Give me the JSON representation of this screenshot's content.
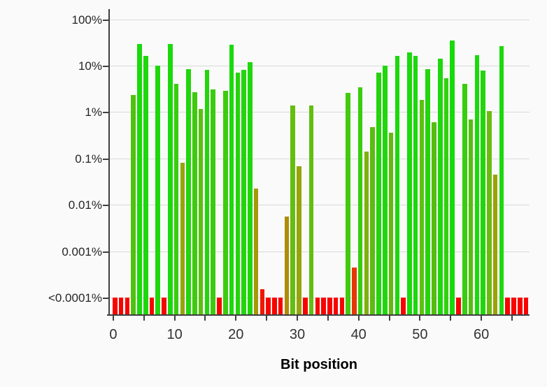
{
  "chart_data": {
    "type": "bar",
    "xlabel": "Bit position",
    "y_axis": {
      "scale": "log",
      "tick_labels": [
        "100%",
        "10%",
        "1%",
        "0.1%",
        "0.01%",
        "0.001%",
        "<0.0001%"
      ],
      "tick_values": [
        100,
        10,
        1,
        0.1,
        0.01,
        0.001,
        0.0001
      ]
    },
    "x_axis": {
      "major_tick_labels": [
        "0",
        "10",
        "20",
        "30",
        "40",
        "50",
        "60"
      ],
      "major_tick_positions": [
        0,
        10,
        20,
        30,
        40,
        50,
        60
      ],
      "minor_tick_step": 5,
      "range": [
        0,
        67
      ]
    },
    "status_colors": {
      "fail_red": "#f80400",
      "pass_green": "#1ad90c",
      "low_olive": "#9ba108"
    },
    "bars": [
      {
        "bit": 0,
        "pct": "<0.0001",
        "color": "#f80400"
      },
      {
        "bit": 1,
        "pct": "<0.0001",
        "color": "#f80400"
      },
      {
        "bit": 2,
        "pct": "<0.0001",
        "color": "#f80400"
      },
      {
        "bit": 3,
        "pct": 2.3,
        "color": "#4fc20f"
      },
      {
        "bit": 4,
        "pct": 29,
        "color": "#1ad90c"
      },
      {
        "bit": 5,
        "pct": 16,
        "color": "#1cd80c"
      },
      {
        "bit": 6,
        "pct": "<0.0001",
        "color": "#f80400"
      },
      {
        "bit": 7,
        "pct": 10,
        "color": "#1fd70c"
      },
      {
        "bit": 8,
        "pct": "<0.0001",
        "color": "#f80400"
      },
      {
        "bit": 9,
        "pct": 29,
        "color": "#1ad90c"
      },
      {
        "bit": 10,
        "pct": 4.0,
        "color": "#36ce0d"
      },
      {
        "bit": 11,
        "pct": 0.08,
        "color": "#93a609"
      },
      {
        "bit": 12,
        "pct": 8.3,
        "color": "#22d50c"
      },
      {
        "bit": 13,
        "pct": 2.7,
        "color": "#3fca0e"
      },
      {
        "bit": 14,
        "pct": 1.15,
        "color": "#58c00f"
      },
      {
        "bit": 15,
        "pct": 8.0,
        "color": "#22d50c"
      },
      {
        "bit": 16,
        "pct": 3.1,
        "color": "#3bcc0e"
      },
      {
        "bit": 17,
        "pct": "<0.0001",
        "color": "#f80400"
      },
      {
        "bit": 18,
        "pct": 2.9,
        "color": "#3dcb0e"
      },
      {
        "bit": 19,
        "pct": 28,
        "color": "#1ad90c"
      },
      {
        "bit": 20,
        "pct": 7.0,
        "color": "#25d40c"
      },
      {
        "bit": 21,
        "pct": 8.1,
        "color": "#22d50c"
      },
      {
        "bit": 22,
        "pct": 12,
        "color": "#1ed70c"
      },
      {
        "bit": 23,
        "pct": 0.022,
        "color": "#a59908"
      },
      {
        "bit": 24,
        "pct": 0.00015,
        "color": "#ef1800"
      },
      {
        "bit": 25,
        "pct": "<0.0001",
        "color": "#f80400"
      },
      {
        "bit": 26,
        "pct": "<0.0001",
        "color": "#f80400"
      },
      {
        "bit": 27,
        "pct": "<0.0001",
        "color": "#f80400"
      },
      {
        "bit": 28,
        "pct": 0.0056,
        "color": "#ae8c06"
      },
      {
        "bit": 29,
        "pct": 1.4,
        "color": "#63be10"
      },
      {
        "bit": 30,
        "pct": 0.068,
        "color": "#96a309"
      },
      {
        "bit": 31,
        "pct": "<0.0001",
        "color": "#f80400"
      },
      {
        "bit": 32,
        "pct": 1.4,
        "color": "#60bf10"
      },
      {
        "bit": 33,
        "pct": "<0.0001",
        "color": "#f80400"
      },
      {
        "bit": 34,
        "pct": "<0.0001",
        "color": "#f80400"
      },
      {
        "bit": 35,
        "pct": "<0.0001",
        "color": "#f80400"
      },
      {
        "bit": 36,
        "pct": "<0.0001",
        "color": "#f80400"
      },
      {
        "bit": 37,
        "pct": "<0.0001",
        "color": "#f80400"
      },
      {
        "bit": 38,
        "pct": 2.6,
        "color": "#41ca0e"
      },
      {
        "bit": 39,
        "pct": 0.00045,
        "color": "#e73800"
      },
      {
        "bit": 40,
        "pct": 3.4,
        "color": "#38cd0d"
      },
      {
        "bit": 41,
        "pct": 0.14,
        "color": "#7fb00b"
      },
      {
        "bit": 42,
        "pct": 0.47,
        "color": "#5abd0f"
      },
      {
        "bit": 43,
        "pct": 7.0,
        "color": "#25d40c"
      },
      {
        "bit": 44,
        "pct": 10,
        "color": "#1fd70c"
      },
      {
        "bit": 45,
        "pct": 0.36,
        "color": "#63b90f"
      },
      {
        "bit": 46,
        "pct": 16,
        "color": "#1cd80c"
      },
      {
        "bit": 47,
        "pct": "<0.0001",
        "color": "#f80400"
      },
      {
        "bit": 48,
        "pct": 19,
        "color": "#1bd90c"
      },
      {
        "bit": 49,
        "pct": 16,
        "color": "#1cd80c"
      },
      {
        "bit": 50,
        "pct": 1.8,
        "color": "#5cc110"
      },
      {
        "bit": 51,
        "pct": 8.4,
        "color": "#22d50c"
      },
      {
        "bit": 52,
        "pct": 0.6,
        "color": "#55bd0e"
      },
      {
        "bit": 53,
        "pct": 14,
        "color": "#1dd80c"
      },
      {
        "bit": 54,
        "pct": 5.3,
        "color": "#30d10d"
      },
      {
        "bit": 55,
        "pct": 35,
        "color": "#17da0b"
      },
      {
        "bit": 56,
        "pct": "<0.0001",
        "color": "#f80400"
      },
      {
        "bit": 57,
        "pct": 4.0,
        "color": "#36ce0d"
      },
      {
        "bit": 58,
        "pct": 0.68,
        "color": "#53be0e"
      },
      {
        "bit": 59,
        "pct": 17,
        "color": "#1bd90c"
      },
      {
        "bit": 60,
        "pct": 7.8,
        "color": "#23d50c"
      },
      {
        "bit": 61,
        "pct": 1.05,
        "color": "#6cba10"
      },
      {
        "bit": 62,
        "pct": 0.045,
        "color": "#9ba108"
      },
      {
        "bit": 63,
        "pct": 26,
        "color": "#1bd90c"
      },
      {
        "bit": 64,
        "pct": "<0.0001",
        "color": "#f80400"
      },
      {
        "bit": 65,
        "pct": "<0.0001",
        "color": "#f80400"
      },
      {
        "bit": 66,
        "pct": "<0.0001",
        "color": "#f80400"
      },
      {
        "bit": 67,
        "pct": "<0.0001",
        "color": "#f80400"
      }
    ]
  }
}
